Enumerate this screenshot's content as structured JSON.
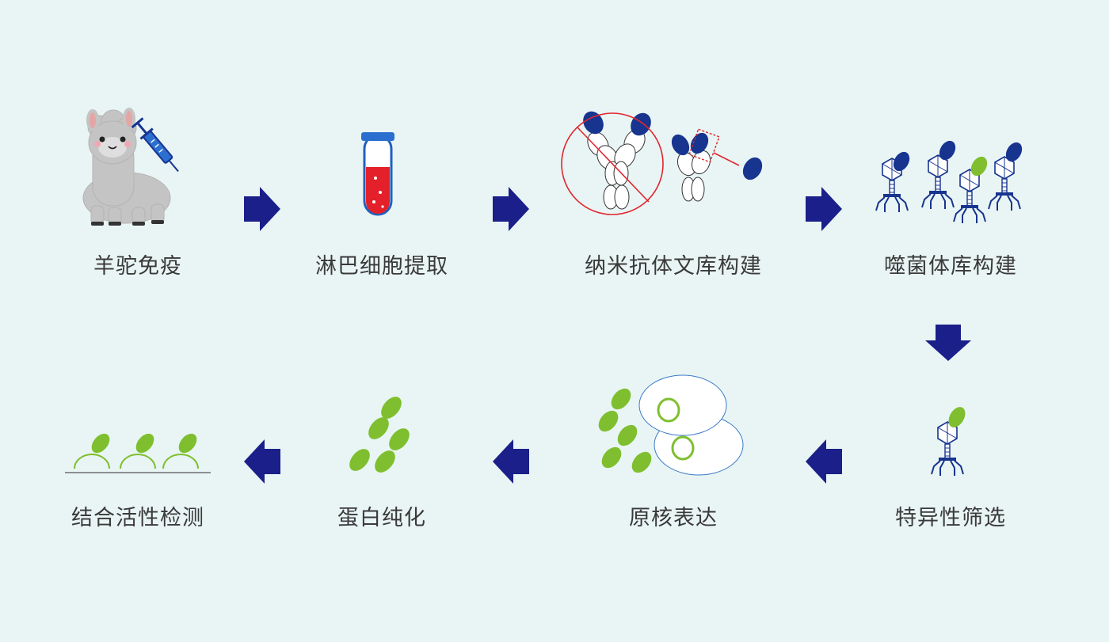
{
  "steps": [
    {
      "label": "羊驼免疫"
    },
    {
      "label": "淋巴细胞提取"
    },
    {
      "label": "纳米抗体文库构建"
    },
    {
      "label": "噬菌体库构建"
    },
    {
      "label": "特异性筛选"
    },
    {
      "label": "原核表达"
    },
    {
      "label": "蛋白纯化"
    },
    {
      "label": "结合活性检测"
    }
  ],
  "icons": {
    "step1": "alpaca-with-syringe-icon",
    "step2": "blood-test-tube-icon",
    "step3": "antibody-fragmentation-icon",
    "step4": "phage-library-icon",
    "step5": "single-phage-icon",
    "step6": "prokaryotic-cell-expression-icon",
    "step7": "purified-protein-icon",
    "step8": "surface-binding-icon"
  },
  "colors": {
    "background": "#e9f5f4",
    "arrow": "#1b1f8a",
    "domain_blue": "#17348f",
    "nanobody_green": "#7fbf2f",
    "blood_red": "#e4202a",
    "forbidden_red": "#e0262f"
  }
}
